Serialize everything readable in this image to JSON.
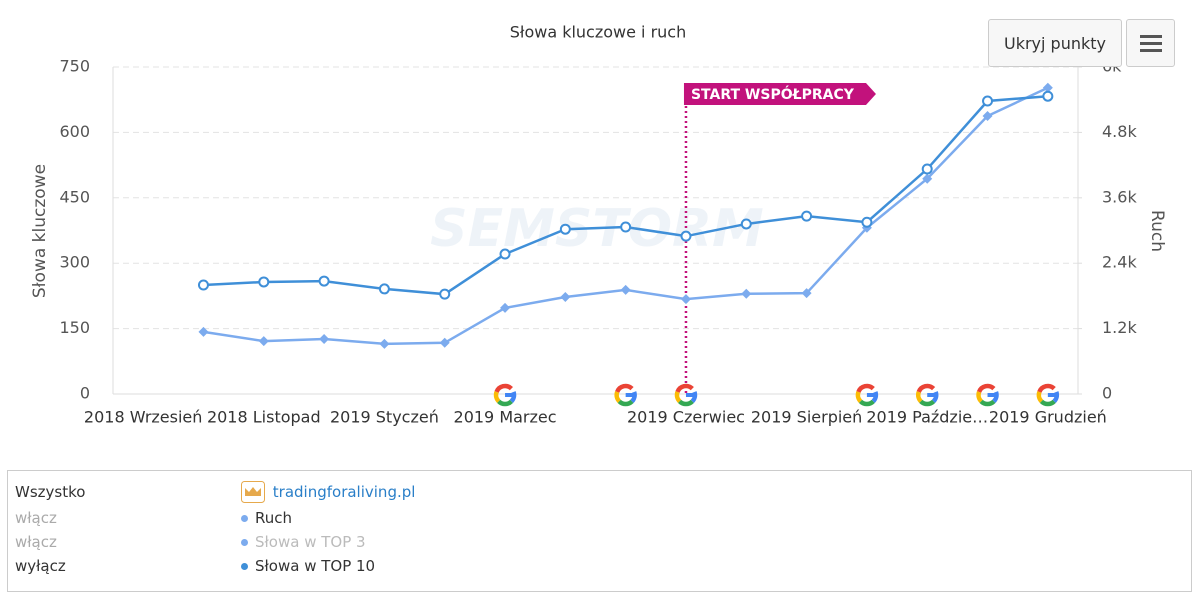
{
  "chart_data": {
    "type": "line",
    "title": "Słowa kluczowe i ruch",
    "watermark": "SEMSTORM",
    "ylabel": "Słowa kluczowe",
    "y2label": "Ruch",
    "categories": [
      "2018 Wrzesień",
      null,
      "2018 Listopad",
      null,
      "2019 Styczeń",
      null,
      "2019 Marzec",
      null,
      null,
      "2019 Czerwiec",
      null,
      "2019 Sierpień",
      null,
      "2019 Paździe…",
      null,
      "2019 Grudzień"
    ],
    "ylim": [
      0,
      750
    ],
    "yticks": [
      0,
      150,
      300,
      450,
      600,
      750
    ],
    "y2lim": [
      0,
      6000
    ],
    "y2ticks": [
      0,
      {
        "value": 1200,
        "label": "1.2k"
      },
      {
        "value": 2400,
        "label": "2.4k"
      },
      {
        "value": 3600,
        "label": "3.6k"
      },
      {
        "value": 4800,
        "label": "4.8k"
      },
      {
        "value": 6000,
        "label": "6k"
      }
    ],
    "grid": true,
    "series": [
      {
        "name": "Ruch",
        "color": "#7cabee",
        "marker": "diamond",
        "axis": "y2",
        "values": [
          null,
          1140,
          970,
          1010,
          920,
          940,
          1580,
          1780,
          1910,
          1740,
          1840,
          1850,
          3050,
          3950,
          5100,
          5620
        ]
      },
      {
        "name": "Słowa w TOP 3",
        "color": "#7cabee",
        "hidden": true,
        "values": [
          null,
          null,
          null,
          null,
          null,
          null,
          null,
          null,
          null,
          null,
          null,
          null,
          null,
          null,
          null,
          null
        ]
      },
      {
        "name": "Słowa w TOP 10",
        "color": "#3f8fd8",
        "marker": "circle",
        "values": [
          null,
          250,
          257,
          259,
          241,
          229,
          321,
          378,
          383,
          362,
          390,
          408,
          394,
          516,
          672,
          683
        ]
      }
    ],
    "annotation": {
      "category": 9,
      "label": "START WSPÓŁPRACY",
      "color": "#c2127c"
    },
    "google_markers": [
      6,
      8,
      9,
      12,
      13,
      14,
      15
    ]
  },
  "controls": {
    "hide_points": "Ukryj punkty"
  },
  "legend": {
    "all": "Wszystko",
    "domain": "tradingforaliving.pl",
    "toggles": [
      "włącz",
      "włącz",
      "wyłącz"
    ]
  }
}
